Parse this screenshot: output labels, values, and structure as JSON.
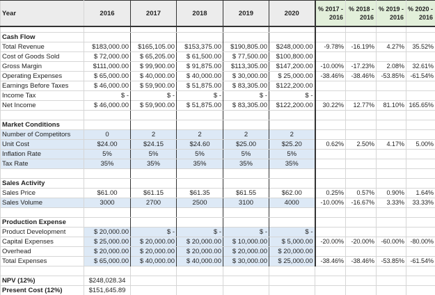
{
  "header": {
    "label": "Year",
    "years": [
      "2016",
      "2017",
      "2018",
      "2019",
      "2020"
    ],
    "pct": [
      [
        "% 2017 -",
        "2016"
      ],
      [
        "% 2018 -",
        "2016"
      ],
      [
        "% 2019 -",
        "2016"
      ],
      [
        "% 2020 -",
        "2016"
      ]
    ]
  },
  "rows": [
    {
      "type": "spacer"
    },
    {
      "label": "Cash Flow",
      "bold": true,
      "dash": true
    },
    {
      "label": "Total Revenue",
      "values": [
        "$183,000.00",
        "$165,105.00",
        "$153,375.00",
        "$190,805.00",
        "$248,000.00"
      ],
      "pct": [
        "-9.78%",
        "-16.19%",
        "4.27%",
        "35.52%"
      ]
    },
    {
      "label": "Cost of Goods Sold",
      "values": [
        "$ 72,000.00",
        "$ 65,205.00",
        "$ 61,500.00",
        "$ 77,500.00",
        "$100,800.00"
      ]
    },
    {
      "label": "Gross Margin",
      "values": [
        "$111,000.00",
        "$ 99,900.00",
        "$ 91,875.00",
        "$113,305.00",
        "$147,200.00"
      ],
      "pct": [
        "-10.00%",
        "-17.23%",
        "2.08%",
        "32.61%"
      ]
    },
    {
      "label": "Operating Expenses",
      "values": [
        "$ 65,000.00",
        "$ 40,000.00",
        "$ 40,000.00",
        "$ 30,000.00",
        "$ 25,000.00"
      ],
      "pct": [
        "-38.46%",
        "-38.46%",
        "-53.85%",
        "-61.54%"
      ]
    },
    {
      "label": "Earnings Before Taxes",
      "values": [
        "$ 46,000.00",
        "$ 59,900.00",
        "$ 51,875.00",
        "$ 83,305.00",
        "$122,200.00"
      ]
    },
    {
      "label": "Income Tax",
      "values": [
        "$ -",
        "$ -",
        "$ -",
        "$ -",
        "$ -"
      ],
      "dash": true
    },
    {
      "label": "Net Income",
      "values": [
        "$ 46,000.00",
        "$ 59,900.00",
        "$ 51,875.00",
        "$ 83,305.00",
        "$122,200.00"
      ],
      "pct": [
        "30.22%",
        "12.77%",
        "81.10%",
        "165.65%"
      ]
    },
    {
      "label": ""
    },
    {
      "label": "Market Conditions",
      "bold": true,
      "dash": true
    },
    {
      "label": "Number of Competitors",
      "values": [
        "0",
        "2",
        "2",
        "2",
        "2"
      ],
      "center": true,
      "blue": true,
      "bluelabel": true
    },
    {
      "label": "Unit Cost",
      "values": [
        "$24.00",
        "$24.15",
        "$24.60",
        "$25.00",
        "$25.20"
      ],
      "pct": [
        "0.62%",
        "2.50%",
        "4.17%",
        "5.00%"
      ],
      "center": true,
      "blue": true,
      "bluelabel": true
    },
    {
      "label": "Inflation Rate",
      "values": [
        "5%",
        "5%",
        "5%",
        "5%",
        "5%"
      ],
      "center": true,
      "blue": true,
      "bluelabel": true
    },
    {
      "label": "Tax Rate",
      "values": [
        "35%",
        "35%",
        "35%",
        "35%",
        "35%"
      ],
      "center": true,
      "blue": true,
      "bluelabel": true,
      "dash": true
    },
    {
      "label": ""
    },
    {
      "label": "Sales Activity",
      "bold": true,
      "dash": true
    },
    {
      "label": "Sales Price",
      "values": [
        "$61.00",
        "$61.15",
        "$61.35",
        "$61.55",
        "$62.00"
      ],
      "pct": [
        "0.25%",
        "0.57%",
        "0.90%",
        "1.64%"
      ],
      "center": true
    },
    {
      "label": "Sales Volume",
      "values": [
        "3000",
        "2700",
        "2500",
        "3100",
        "4000"
      ],
      "pct": [
        "-10.00%",
        "-16.67%",
        "3.33%",
        "33.33%"
      ],
      "center": true,
      "blue": true,
      "bluelabel": true,
      "dash": true
    },
    {
      "label": ""
    },
    {
      "label": "Production Expense",
      "bold": true,
      "dash": true
    },
    {
      "label": "Product Development",
      "values": [
        "$ 20,000.00",
        "$ -",
        "$ -",
        "$ -",
        "$ -"
      ],
      "blue": true
    },
    {
      "label": "Capital Expenses",
      "values": [
        "$ 25,000.00",
        "$ 20,000.00",
        "$ 20,000.00",
        "$ 10,000.00",
        "$ 5,000.00"
      ],
      "pct": [
        "-20.00%",
        "-20.00%",
        "-60.00%",
        "-80.00%"
      ],
      "blue": true
    },
    {
      "label": "Overhead",
      "values": [
        "$ 20,000.00",
        "$ 20,000.00",
        "$ 20,000.00",
        "$ 20,000.00",
        "$ 20,000.00"
      ],
      "blue": true,
      "dash": true
    },
    {
      "label": "Total Expenses",
      "values": [
        "$ 65,000.00",
        "$ 40,000.00",
        "$ 40,000.00",
        "$ 30,000.00",
        "$ 25,000.00"
      ],
      "pct": [
        "-38.46%",
        "-38.46%",
        "-53.85%",
        "-61.54%"
      ],
      "blue": true,
      "dash": true
    },
    {
      "label": "",
      "tail": true
    },
    {
      "label": "NPV (12%)",
      "values": [
        "$248,028.34"
      ],
      "bold": true,
      "tail": true,
      "center": true
    },
    {
      "label": "Present Cost (12%)",
      "values": [
        "$151,645.89"
      ],
      "bold": true,
      "tail": true,
      "center": true
    }
  ]
}
